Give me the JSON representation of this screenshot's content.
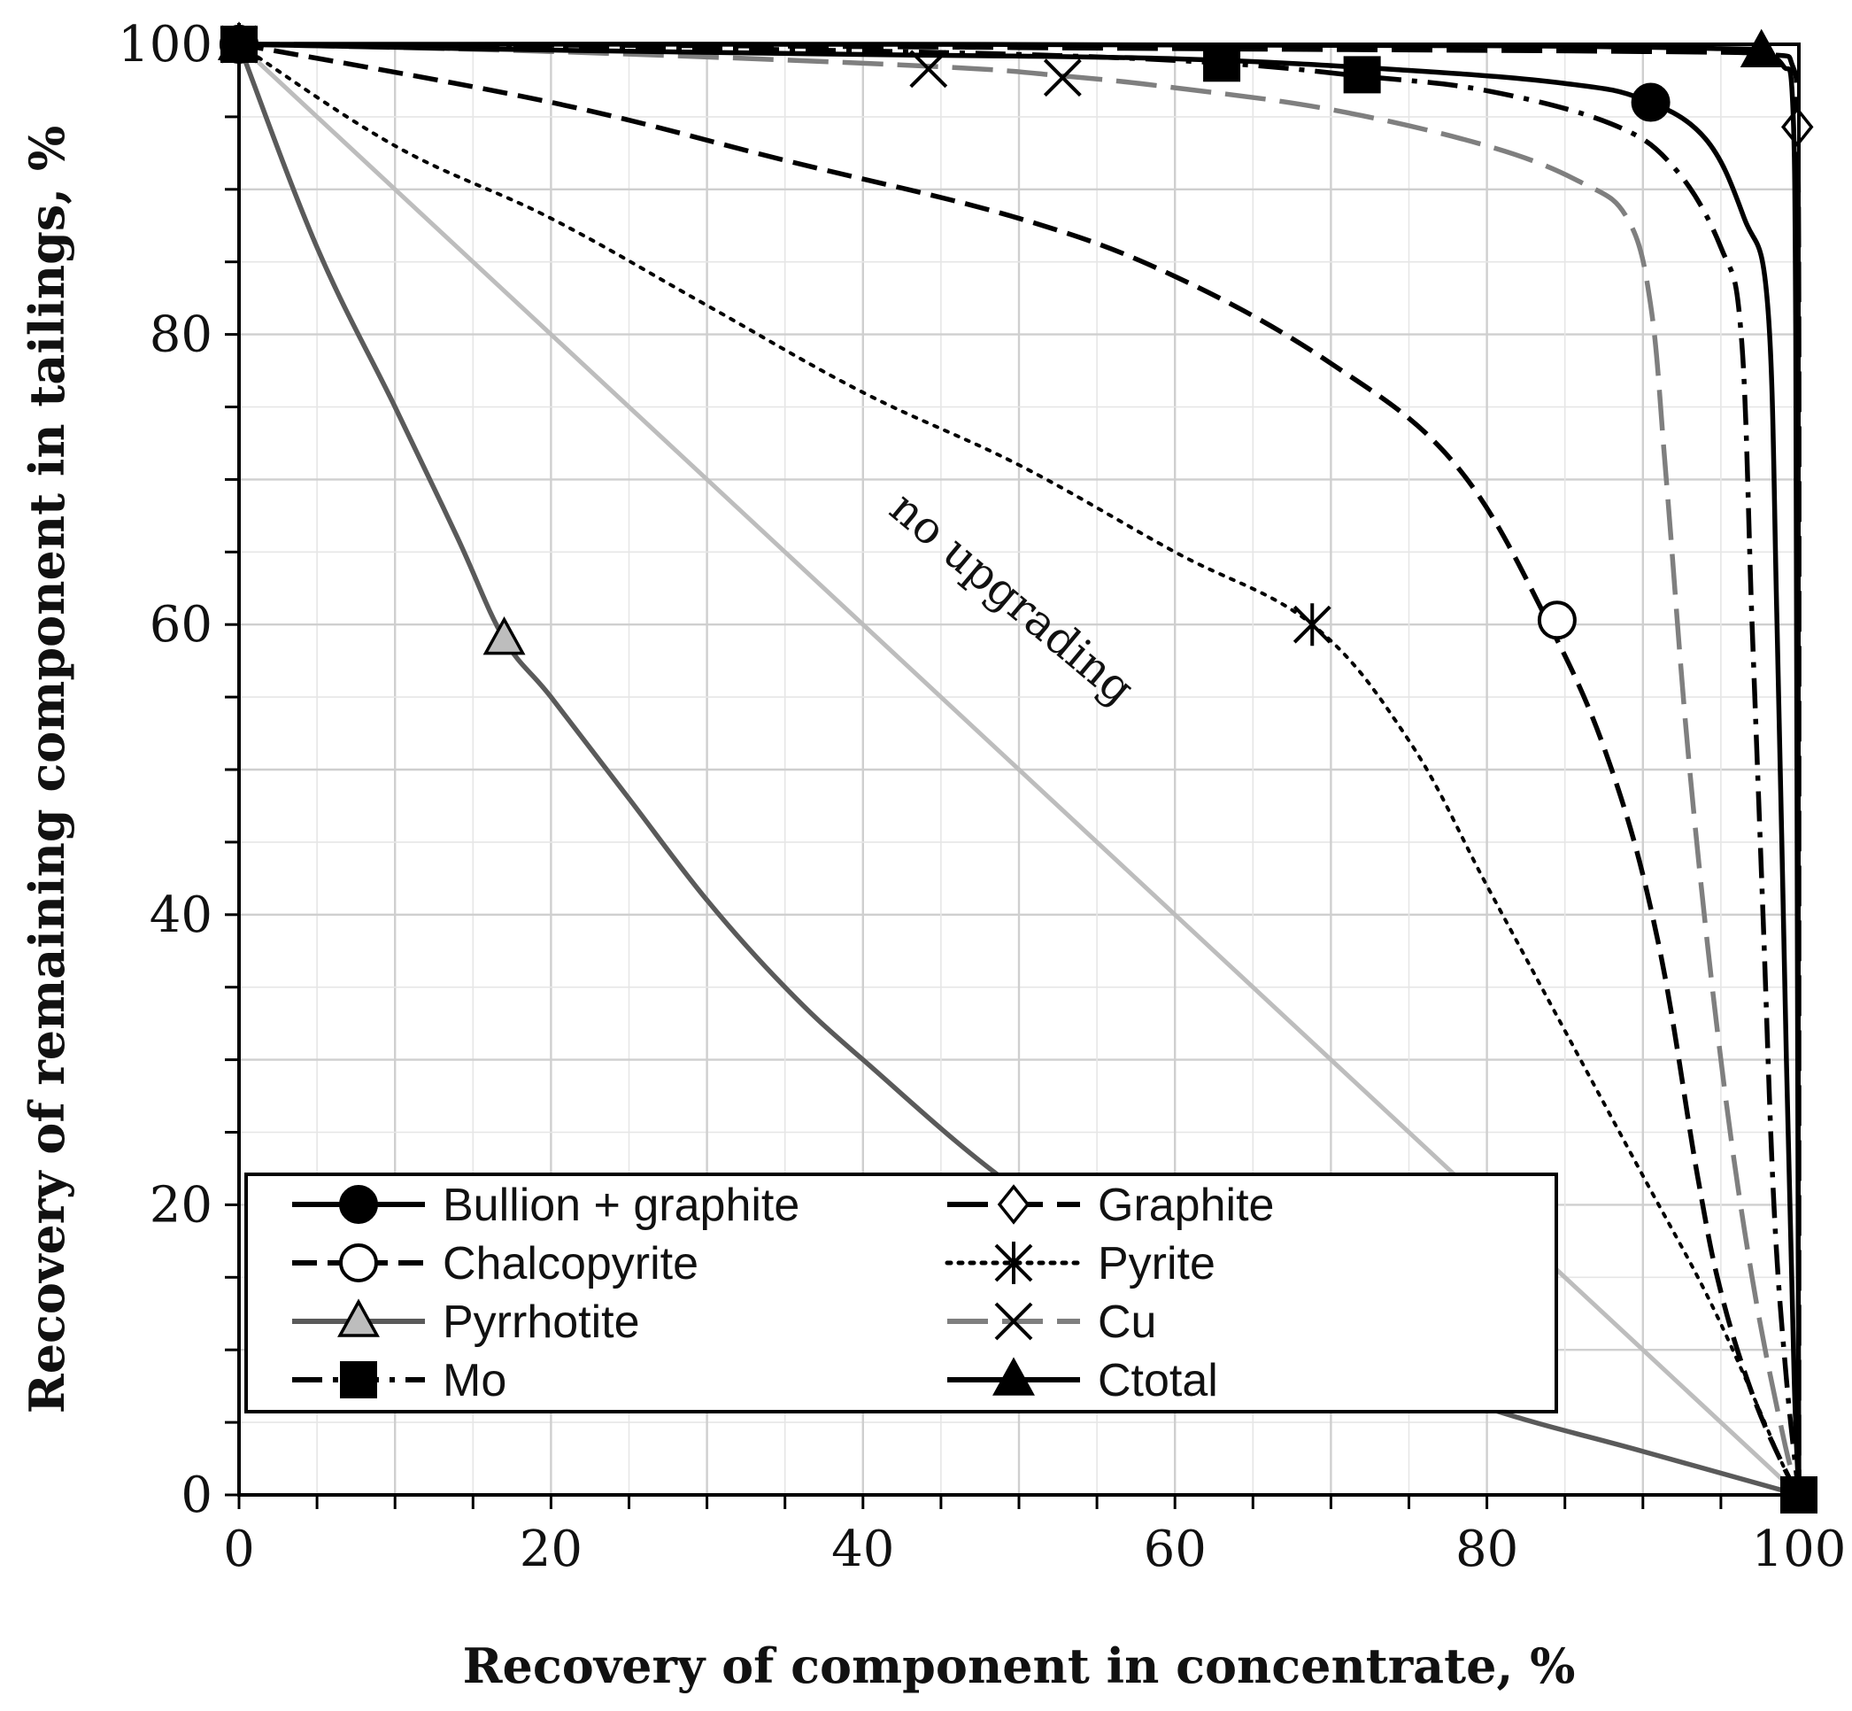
{
  "chart_data": {
    "type": "line",
    "title": "",
    "xlabel": "Recovery of component in concentrate, %",
    "ylabel": "Recovery of remaining component in tailings, %",
    "xlim": [
      0,
      100
    ],
    "ylim": [
      0,
      100
    ],
    "x_ticks": [
      "0",
      "20",
      "40",
      "60",
      "80",
      "100"
    ],
    "y_ticks": [
      "0",
      "20",
      "40",
      "60",
      "80",
      "100"
    ],
    "grid": true,
    "legend_position": "bottom-left",
    "annotations": [
      {
        "text": "no upgrading",
        "x": 58,
        "y": 50
      }
    ],
    "reference_line": {
      "name": "no upgrading",
      "color": "#bdbdbd",
      "points": [
        [
          0,
          100
        ],
        [
          100,
          0
        ]
      ]
    },
    "series": [
      {
        "name": "Bullion + graphite",
        "color": "#000000",
        "dash": "solid",
        "marker": "filled-circle",
        "marker_fill": "#000000",
        "points": [
          [
            0,
            100
          ],
          [
            20,
            99.6
          ],
          [
            40,
            99.3
          ],
          [
            60,
            99
          ],
          [
            75,
            98.2
          ],
          [
            85,
            97.3
          ],
          [
            90,
            96.2
          ],
          [
            94,
            93.5
          ],
          [
            96.5,
            88
          ],
          [
            98,
            82
          ],
          [
            98.6,
            60
          ],
          [
            99.2,
            30
          ],
          [
            99.7,
            8
          ],
          [
            100,
            0
          ]
        ],
        "marker_points": [
          [
            0,
            100
          ],
          [
            90.5,
            96
          ]
        ]
      },
      {
        "name": "Graphite",
        "color": "#000000",
        "dash": "long-dash",
        "marker": "open-diamond",
        "marker_fill": "#ffffff",
        "points": [
          [
            0,
            100
          ],
          [
            30,
            99.9
          ],
          [
            60,
            99.7
          ],
          [
            90,
            99.5
          ],
          [
            98,
            99.3
          ],
          [
            99.6,
            98.5
          ],
          [
            99.9,
            94.3
          ],
          [
            100,
            80
          ],
          [
            100,
            40
          ],
          [
            100,
            0
          ]
        ],
        "marker_points": [
          [
            0,
            100
          ],
          [
            99.9,
            94.3
          ]
        ]
      },
      {
        "name": "Chalcopyrite",
        "color": "#000000",
        "dash": "dash",
        "marker": "open-circle",
        "marker_fill": "#ffffff",
        "points": [
          [
            0,
            100
          ],
          [
            20,
            96
          ],
          [
            35,
            92
          ],
          [
            50,
            88
          ],
          [
            60,
            84
          ],
          [
            70,
            78
          ],
          [
            78,
            71
          ],
          [
            84,
            60
          ],
          [
            88,
            50
          ],
          [
            91,
            38
          ],
          [
            93.5,
            22
          ],
          [
            95,
            14
          ],
          [
            97,
            7
          ],
          [
            99,
            2
          ],
          [
            100,
            0
          ]
        ],
        "marker_points": [
          [
            0,
            100
          ],
          [
            84.5,
            60.3
          ]
        ]
      },
      {
        "name": "Pyrite",
        "color": "#000000",
        "dash": "dot",
        "marker": "star",
        "marker_fill": "#000000",
        "points": [
          [
            0,
            100
          ],
          [
            10,
            93
          ],
          [
            20,
            88
          ],
          [
            30,
            82
          ],
          [
            40,
            76
          ],
          [
            50,
            71
          ],
          [
            60,
            65
          ],
          [
            68.8,
            60
          ],
          [
            75,
            52
          ],
          [
            80,
            42
          ],
          [
            85,
            32
          ],
          [
            90,
            22
          ],
          [
            94,
            14
          ],
          [
            97,
            7
          ],
          [
            99,
            2
          ],
          [
            100,
            0
          ]
        ],
        "marker_points": [
          [
            0,
            100
          ],
          [
            68.8,
            60
          ]
        ]
      },
      {
        "name": "Pyrrhotite",
        "color": "#5a5a5a",
        "dash": "solid",
        "marker": "open-triangle",
        "marker_fill": "#bdbdbd",
        "points": [
          [
            0,
            100
          ],
          [
            5,
            86
          ],
          [
            10,
            75
          ],
          [
            14,
            66
          ],
          [
            17,
            59
          ],
          [
            20,
            55
          ],
          [
            25,
            48
          ],
          [
            30,
            41
          ],
          [
            35,
            35
          ],
          [
            40,
            30
          ],
          [
            50,
            21
          ],
          [
            60,
            15
          ],
          [
            70,
            10
          ],
          [
            80,
            6
          ],
          [
            90,
            3
          ],
          [
            100,
            0
          ]
        ],
        "marker_points": [
          [
            0,
            100
          ],
          [
            17,
            59
          ]
        ]
      },
      {
        "name": "Cu",
        "color": "#7f7f7f",
        "dash": "long-dash",
        "marker": "x",
        "marker_fill": "#000000",
        "points": [
          [
            0,
            100
          ],
          [
            20,
            99.5
          ],
          [
            44,
            98.5
          ],
          [
            53,
            97.8
          ],
          [
            60,
            97
          ],
          [
            70,
            95.5
          ],
          [
            80,
            93
          ],
          [
            86,
            90.5
          ],
          [
            89,
            88
          ],
          [
            90.5,
            82
          ],
          [
            91.5,
            70
          ],
          [
            93,
            50
          ],
          [
            95,
            30
          ],
          [
            97,
            15
          ],
          [
            99,
            4
          ],
          [
            100,
            0
          ]
        ],
        "marker_points": [
          [
            0,
            100
          ],
          [
            44.2,
            98.3
          ],
          [
            52.8,
            97.7
          ]
        ]
      },
      {
        "name": "Mo",
        "color": "#000000",
        "dash": "dash-dot",
        "marker": "filled-square",
        "marker_fill": "#000000",
        "points": [
          [
            0,
            100
          ],
          [
            30,
            99.7
          ],
          [
            50,
            99.3
          ],
          [
            63,
            98.7
          ],
          [
            72,
            97.8
          ],
          [
            80,
            96.8
          ],
          [
            88,
            94.5
          ],
          [
            92,
            91.5
          ],
          [
            95,
            86
          ],
          [
            96.3,
            80
          ],
          [
            97,
            60
          ],
          [
            97.7,
            40
          ],
          [
            98.4,
            20
          ],
          [
            99.2,
            8
          ],
          [
            100,
            0
          ]
        ],
        "marker_points": [
          [
            0,
            100
          ],
          [
            63,
            98.7
          ],
          [
            72,
            97.9
          ],
          [
            100,
            0
          ]
        ]
      },
      {
        "name": "Ctotal",
        "color": "#000000",
        "dash": "solid",
        "marker": "filled-triangle",
        "marker_fill": "#000000",
        "points": [
          [
            0,
            100
          ],
          [
            40,
            100
          ],
          [
            80,
            99.9
          ],
          [
            95,
            99.7
          ],
          [
            97.5,
            99.5
          ],
          [
            99,
            98.5
          ],
          [
            99.6,
            96
          ],
          [
            99.8,
            80
          ],
          [
            99.9,
            40
          ],
          [
            100,
            0
          ]
        ],
        "marker_points": [
          [
            0,
            100
          ],
          [
            97.6,
            99.5
          ]
        ]
      }
    ]
  }
}
